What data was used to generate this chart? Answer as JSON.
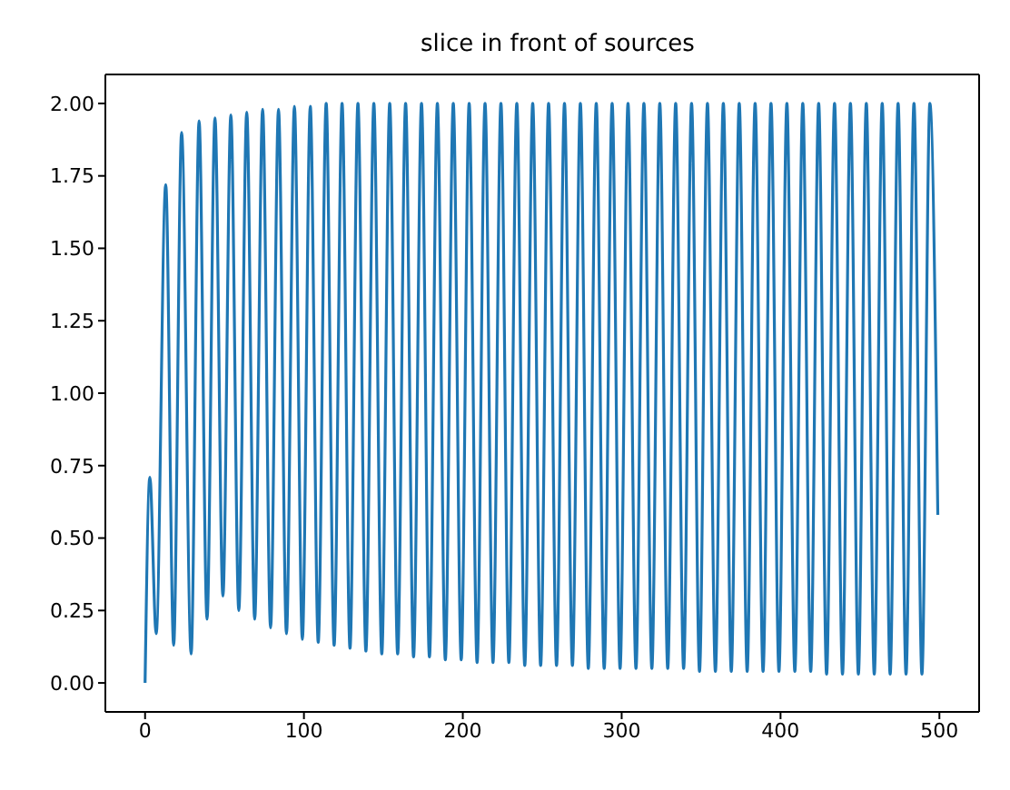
{
  "chart_data": {
    "type": "line",
    "title": "slice in front of sources",
    "x": [
      0,
      3,
      7,
      13,
      18,
      23,
      29,
      34,
      39,
      44,
      49,
      54,
      59,
      64,
      69,
      74,
      79,
      84,
      89,
      94,
      99,
      104,
      109,
      114,
      119,
      124,
      129,
      134,
      139,
      144,
      149,
      154,
      159,
      164,
      169,
      174,
      179,
      184,
      189,
      194,
      199,
      204,
      209,
      214,
      219,
      224,
      229,
      234,
      239,
      244,
      249,
      254,
      259,
      264,
      269,
      274,
      279,
      284,
      289,
      294,
      299,
      304,
      309,
      314,
      319,
      324,
      329,
      334,
      339,
      344,
      349,
      354,
      359,
      364,
      369,
      374,
      379,
      384,
      389,
      394,
      399,
      404,
      409,
      414,
      419,
      424,
      429,
      434,
      439,
      444,
      449,
      454,
      459,
      464,
      469,
      474,
      479,
      484,
      489,
      494,
      499
    ],
    "series": [
      {
        "color": "#1f77b4",
        "values": [
          0,
          0.71,
          0.17,
          1.72,
          0.13,
          1.9,
          0.1,
          1.94,
          0.22,
          1.95,
          0.3,
          1.96,
          0.25,
          1.97,
          0.22,
          1.98,
          0.19,
          1.98,
          0.17,
          1.99,
          0.15,
          1.99,
          0.14,
          2.0,
          0.13,
          2.0,
          0.12,
          2.0,
          0.11,
          2.0,
          0.1,
          2.0,
          0.1,
          2.0,
          0.09,
          2.0,
          0.09,
          2.0,
          0.08,
          2.0,
          0.08,
          2.0,
          0.07,
          2.0,
          0.07,
          2.0,
          0.07,
          2.0,
          0.06,
          2.0,
          0.06,
          2.0,
          0.06,
          2.0,
          0.06,
          2.0,
          0.05,
          2.0,
          0.05,
          2.0,
          0.05,
          2.0,
          0.05,
          2.0,
          0.05,
          2.0,
          0.05,
          2.0,
          0.05,
          2.0,
          0.04,
          2.0,
          0.04,
          2.0,
          0.04,
          2.0,
          0.04,
          2.0,
          0.04,
          2.0,
          0.04,
          2.0,
          0.04,
          2.0,
          0.04,
          2.0,
          0.03,
          2.0,
          0.03,
          2.0,
          0.03,
          2.0,
          0.03,
          2.0,
          0.03,
          2.0,
          0.03,
          2.0,
          0.03,
          2.0,
          0.58
        ]
      }
    ],
    "xlim": [
      -25,
      525
    ],
    "xticks": [
      0,
      100,
      200,
      300,
      400,
      500
    ],
    "ylim": [
      -0.1,
      2.1
    ],
    "yticks": [
      {
        "value": 0,
        "label": "0.00"
      },
      {
        "value": 0.25,
        "label": "0.25"
      },
      {
        "value": 0.5,
        "label": "0.50"
      },
      {
        "value": 0.75,
        "label": "0.75"
      },
      {
        "value": 1,
        "label": "1.00"
      },
      {
        "value": 1.25,
        "label": "1.25"
      },
      {
        "value": 1.5,
        "label": "1.50"
      },
      {
        "value": 1.75,
        "label": "1.75"
      },
      {
        "value": 2,
        "label": "2.00"
      }
    ],
    "grid": false,
    "legend": false,
    "marker": "none",
    "line_style": "solid"
  }
}
